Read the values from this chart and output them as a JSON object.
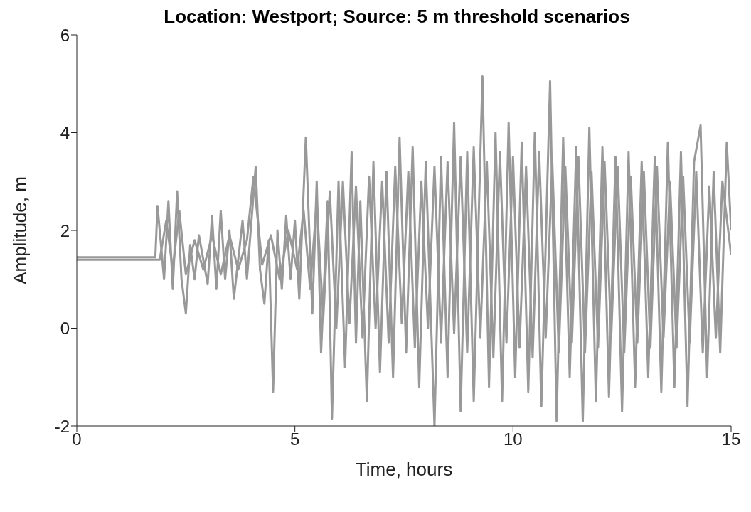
{
  "chart_data": {
    "type": "line",
    "title": "Location: Westport; Source: 5 m threshold scenarios",
    "xlabel": "Time, hours",
    "ylabel": "Amplitude, m",
    "xlim": [
      0,
      15
    ],
    "xticks": [
      0,
      5,
      10,
      15
    ],
    "ylim": [
      -2,
      6
    ],
    "yticks": [
      -2,
      0,
      2,
      4,
      6
    ],
    "marker": "none",
    "line_style": "solid",
    "series": [
      {
        "color": "#999999",
        "x": [
          0,
          1.8,
          1.85,
          2.0,
          2.1,
          2.2,
          2.3,
          2.4,
          2.5,
          2.6,
          2.7,
          2.8,
          3.0,
          3.1,
          3.2,
          3.3,
          3.4,
          3.5,
          3.6,
          3.8,
          3.9,
          4.1,
          4.2,
          4.3,
          4.4,
          4.5,
          4.6,
          4.7,
          4.8,
          4.9,
          5.0,
          5.1,
          5.25,
          5.4,
          5.5,
          5.6,
          5.75,
          5.85,
          6.0,
          6.15,
          6.3,
          6.4,
          6.5,
          6.65,
          6.8,
          6.95,
          7.1,
          7.25,
          7.4,
          7.55,
          7.7,
          7.85,
          8.0,
          8.2,
          8.35,
          8.5,
          8.65,
          8.8,
          8.95,
          9.1,
          9.3,
          9.45,
          9.6,
          9.75,
          9.9,
          10.05,
          10.2,
          10.35,
          10.5,
          10.65,
          10.85,
          11.0,
          11.15,
          11.3,
          11.45,
          11.6,
          11.75,
          11.9,
          12.05,
          12.2,
          12.35,
          12.5,
          12.65,
          12.8,
          12.95,
          13.1,
          13.25,
          13.4,
          13.55,
          13.7,
          13.85,
          14.0,
          14.15,
          14.3,
          14.45,
          14.6,
          14.75,
          14.9,
          15.0
        ],
        "values": [
          1.45,
          1.45,
          2.5,
          1.0,
          2.6,
          0.8,
          2.8,
          1.0,
          0.3,
          1.7,
          1.0,
          1.9,
          0.9,
          2.3,
          0.8,
          2.4,
          1.0,
          2.0,
          0.6,
          2.2,
          1.0,
          3.3,
          1.2,
          0.5,
          1.8,
          -1.3,
          2.0,
          0.8,
          2.3,
          1.0,
          2.2,
          0.6,
          3.9,
          0.3,
          3.0,
          -0.5,
          2.6,
          -1.85,
          3.0,
          -0.8,
          3.6,
          -0.3,
          2.6,
          -1.5,
          3.4,
          -0.9,
          3.2,
          -1.0,
          3.9,
          -0.5,
          3.7,
          -1.2,
          3.4,
          -2.0,
          3.5,
          -1.0,
          4.2,
          -1.7,
          3.6,
          -1.5,
          5.15,
          -1.2,
          4.0,
          -1.5,
          4.2,
          -1.0,
          3.8,
          -1.3,
          4.0,
          -1.6,
          5.05,
          -1.9,
          3.9,
          -1.0,
          3.7,
          -1.9,
          4.1,
          -1.5,
          3.7,
          -1.4,
          3.5,
          -1.7,
          3.6,
          -1.2,
          3.4,
          -1.0,
          3.5,
          -1.3,
          3.8,
          -1.2,
          3.6,
          -1.6,
          3.4,
          4.15,
          -1.0,
          3.2,
          -0.5,
          3.8,
          2.0
        ]
      },
      {
        "color": "#999999",
        "x": [
          0,
          1.9,
          2.05,
          2.2,
          2.35,
          2.5,
          2.7,
          2.9,
          3.1,
          3.3,
          3.5,
          3.7,
          3.9,
          4.05,
          4.25,
          4.45,
          4.65,
          4.85,
          5.05,
          5.2,
          5.35,
          5.5,
          5.65,
          5.8,
          5.95,
          6.1,
          6.25,
          6.4,
          6.55,
          6.7,
          6.85,
          7.0,
          7.15,
          7.3,
          7.45,
          7.6,
          7.75,
          7.9,
          8.05,
          8.2,
          8.35,
          8.5,
          8.65,
          8.8,
          8.95,
          9.1,
          9.25,
          9.4,
          9.55,
          9.7,
          9.85,
          10.0,
          10.15,
          10.3,
          10.45,
          10.6,
          10.75,
          10.9,
          11.05,
          11.2,
          11.35,
          11.5,
          11.65,
          11.8,
          11.95,
          12.1,
          12.25,
          12.4,
          12.55,
          12.7,
          12.85,
          13.0,
          13.15,
          13.3,
          13.45,
          13.6,
          13.75,
          13.9,
          14.05,
          14.2,
          14.35,
          14.5,
          14.65,
          14.8,
          15.0
        ],
        "values": [
          1.4,
          1.4,
          2.2,
          1.2,
          2.4,
          1.1,
          1.8,
          1.2,
          1.9,
          1.1,
          1.9,
          1.2,
          1.8,
          3.1,
          1.3,
          1.9,
          1.0,
          2.0,
          1.2,
          2.4,
          0.8,
          2.6,
          0.2,
          2.8,
          0.0,
          3.0,
          0.1,
          2.9,
          -0.2,
          3.1,
          0.0,
          3.0,
          -0.3,
          3.3,
          0.1,
          3.2,
          -0.4,
          3.0,
          0.0,
          3.3,
          -0.3,
          3.4,
          -0.1,
          3.5,
          -0.5,
          3.7,
          -0.2,
          3.4,
          -0.6,
          3.6,
          -0.3,
          3.5,
          -0.4,
          3.3,
          -0.6,
          3.6,
          -0.2,
          3.4,
          -0.5,
          3.3,
          -0.3,
          3.5,
          -0.5,
          3.2,
          -0.4,
          3.4,
          -0.2,
          3.3,
          -0.5,
          3.1,
          -0.3,
          3.2,
          -0.4,
          3.3,
          -0.2,
          3.0,
          -0.4,
          3.1,
          -0.3,
          3.2,
          -0.5,
          2.9,
          -0.2,
          3.0,
          1.5
        ]
      }
    ]
  }
}
